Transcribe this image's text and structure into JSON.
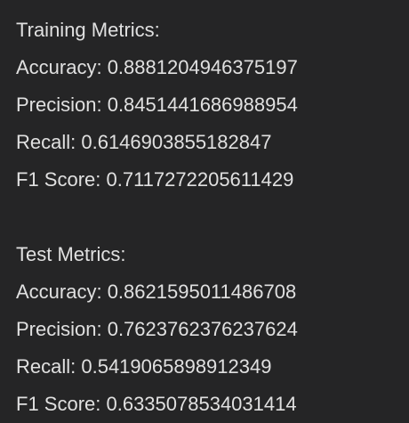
{
  "training": {
    "heading": "Training Metrics:",
    "accuracy": "Accuracy: 0.8881204946375197",
    "precision": "Precision: 0.8451441686988954",
    "recall": "Recall: 0.6146903855182847",
    "f1": "F1 Score: 0.7117272205611429"
  },
  "test": {
    "heading": "Test Metrics:",
    "accuracy": "Accuracy: 0.8621595011486708",
    "precision": "Precision: 0.7623762376237624",
    "recall": "Recall: 0.5419065898912349",
    "f1": "F1 Score: 0.6335078534031414"
  },
  "colors": {
    "background": "#252526",
    "text": "#e0e0e0"
  }
}
